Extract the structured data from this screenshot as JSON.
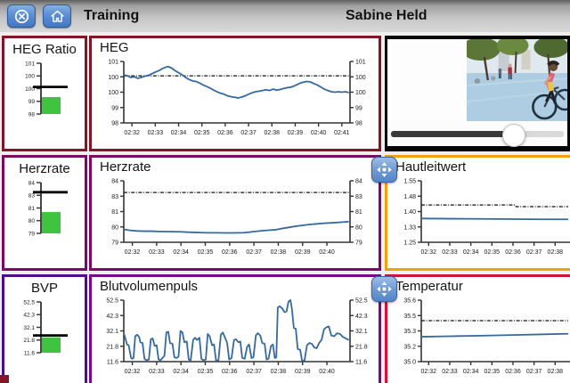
{
  "topbar": {
    "title": "Training",
    "user": "Sabine Held"
  },
  "colors": {
    "line": "#36699f",
    "threshold": "#111111",
    "bar": "#3ec43e",
    "axis": "#333333",
    "maroon": "#801626",
    "purple": "#7b0967",
    "violet": "#4f0d8e",
    "plum": "#75098a",
    "orange": "#f2a20a",
    "crimson": "#d41238",
    "video_frame": "#050505"
  },
  "panels": {
    "heg_gauge": {
      "title": "HEG Ratio",
      "border_color": "#801626"
    },
    "heg_chart": {
      "title": "HEG",
      "border_color": "#801626"
    },
    "video": {
      "border_color": "#050505"
    },
    "herzrate_gauge": {
      "title": "Herzrate",
      "border_color": "#7b0967"
    },
    "herzrate_chart": {
      "title": "Herzrate",
      "border_color": "#7b0967"
    },
    "hautleitwert_chart": {
      "title": "Hautleitwert",
      "border_color": "#f2a20a"
    },
    "bvp_gauge": {
      "title": "BVP",
      "border_color": "#4f0d8e"
    },
    "bvp_chart": {
      "title": "Blutvolumenpuls",
      "border_color": "#75098a"
    },
    "temperatur_chart": {
      "title": "Temperatur",
      "border_color": "#d41238"
    }
  },
  "video": {
    "progress": 0.7,
    "reveal": 0.44
  },
  "chart_data": [
    {
      "id": "heg_gauge",
      "type": "gauge",
      "title": "HEG Ratio",
      "ylim": [
        98,
        101
      ],
      "tick_labels": [
        "101",
        "100",
        "100",
        "99",
        "98"
      ],
      "value": 99.0,
      "threshold": 99.6
    },
    {
      "id": "herzrate_gauge",
      "type": "gauge",
      "title": "Herzrate",
      "ylim": [
        79,
        84
      ],
      "tick_labels": [
        "84",
        "83",
        "81",
        "80",
        "79"
      ],
      "value": 81.1,
      "threshold": 83.05
    },
    {
      "id": "bvp_gauge",
      "type": "gauge",
      "title": "BVP",
      "ylim": [
        11.6,
        52.5
      ],
      "tick_labels": [
        "52.5",
        "42.3",
        "32.1",
        "21.8",
        "11.6"
      ],
      "value": 24.0,
      "threshold": 25.5
    },
    {
      "id": "heg",
      "type": "line",
      "title": "HEG",
      "dual_axis": true,
      "ylim": [
        98,
        101
      ],
      "ytick_labels": [
        "101",
        "100",
        "100",
        "99",
        "98"
      ],
      "xlim": [
        31.65,
        41.35
      ],
      "xtick_labels": [
        "02:32",
        "02:33",
        "02:34",
        "02:35",
        "02:36",
        "02:37",
        "02:38",
        "02:39",
        "02:40",
        "02:41"
      ],
      "threshold": 100.3,
      "points": [
        [
          31.65,
          100.35
        ],
        [
          31.8,
          100.3
        ],
        [
          31.95,
          100.22
        ],
        [
          32.1,
          100.25
        ],
        [
          32.25,
          100.18
        ],
        [
          32.4,
          100.22
        ],
        [
          32.55,
          100.28
        ],
        [
          32.7,
          100.32
        ],
        [
          32.85,
          100.4
        ],
        [
          33.0,
          100.48
        ],
        [
          33.15,
          100.55
        ],
        [
          33.3,
          100.65
        ],
        [
          33.45,
          100.72
        ],
        [
          33.55,
          100.75
        ],
        [
          33.7,
          100.68
        ],
        [
          33.85,
          100.55
        ],
        [
          34.0,
          100.45
        ],
        [
          34.15,
          100.35
        ],
        [
          34.3,
          100.22
        ],
        [
          34.45,
          100.12
        ],
        [
          34.6,
          100.05
        ],
        [
          34.75,
          100.02
        ],
        [
          34.9,
          99.95
        ],
        [
          35.05,
          99.85
        ],
        [
          35.2,
          99.78
        ],
        [
          35.35,
          99.7
        ],
        [
          35.5,
          99.6
        ],
        [
          35.65,
          99.52
        ],
        [
          35.8,
          99.45
        ],
        [
          35.95,
          99.4
        ],
        [
          36.1,
          99.32
        ],
        [
          36.25,
          99.28
        ],
        [
          36.4,
          99.25
        ],
        [
          36.55,
          99.22
        ],
        [
          36.7,
          99.26
        ],
        [
          36.85,
          99.32
        ],
        [
          37.0,
          99.4
        ],
        [
          37.15,
          99.47
        ],
        [
          37.3,
          99.52
        ],
        [
          37.45,
          99.55
        ],
        [
          37.6,
          99.58
        ],
        [
          37.75,
          99.62
        ],
        [
          37.9,
          99.58
        ],
        [
          38.05,
          99.65
        ],
        [
          38.2,
          99.6
        ],
        [
          38.35,
          99.63
        ],
        [
          38.5,
          99.68
        ],
        [
          38.65,
          99.72
        ],
        [
          38.8,
          99.74
        ],
        [
          38.95,
          99.8
        ],
        [
          39.1,
          99.88
        ],
        [
          39.25,
          99.96
        ],
        [
          39.4,
          100.0
        ],
        [
          39.5,
          100.02
        ],
        [
          39.65,
          100.0
        ],
        [
          39.8,
          99.92
        ],
        [
          39.95,
          99.85
        ],
        [
          40.1,
          99.75
        ],
        [
          40.25,
          99.65
        ],
        [
          40.4,
          99.58
        ],
        [
          40.55,
          99.52
        ],
        [
          40.7,
          99.5
        ],
        [
          40.85,
          99.52
        ],
        [
          41.0,
          99.5
        ],
        [
          41.15,
          99.52
        ],
        [
          41.3,
          99.48
        ]
      ]
    },
    {
      "id": "herzrate",
      "type": "line",
      "title": "Herzrate",
      "dual_axis": true,
      "ylim": [
        79,
        84
      ],
      "ytick_labels": [
        "84",
        "83",
        "81",
        "80",
        "79"
      ],
      "xlim": [
        31.65,
        40.95
      ],
      "xtick_labels": [
        "02:32",
        "02:33",
        "02:34",
        "02:35",
        "02:36",
        "02:37",
        "02:38",
        "02:39",
        "02:40"
      ],
      "threshold": 83.05,
      "points": [
        [
          31.65,
          80.05
        ],
        [
          31.9,
          79.97
        ],
        [
          32.2,
          79.92
        ],
        [
          32.5,
          79.9
        ],
        [
          32.8,
          79.9
        ],
        [
          33.1,
          79.88
        ],
        [
          33.4,
          79.87
        ],
        [
          33.7,
          79.86
        ],
        [
          34.0,
          79.85
        ],
        [
          34.3,
          79.82
        ],
        [
          34.6,
          79.8
        ],
        [
          34.9,
          79.78
        ],
        [
          35.2,
          79.77
        ],
        [
          35.5,
          79.77
        ],
        [
          35.8,
          79.76
        ],
        [
          36.1,
          79.76
        ],
        [
          36.4,
          79.77
        ],
        [
          36.6,
          79.78
        ],
        [
          36.8,
          79.82
        ],
        [
          37.0,
          79.87
        ],
        [
          37.3,
          79.93
        ],
        [
          37.6,
          79.98
        ],
        [
          37.9,
          80.02
        ],
        [
          38.1,
          80.1
        ],
        [
          38.4,
          80.2
        ],
        [
          38.7,
          80.3
        ],
        [
          39.0,
          80.38
        ],
        [
          39.3,
          80.45
        ],
        [
          39.6,
          80.5
        ],
        [
          39.9,
          80.55
        ],
        [
          40.2,
          80.58
        ],
        [
          40.5,
          80.62
        ],
        [
          40.9,
          80.68
        ]
      ]
    },
    {
      "id": "blutvolumenpuls",
      "type": "line",
      "title": "Blutvolumenpuls",
      "dual_axis": true,
      "ylim": [
        11.6,
        52.5
      ],
      "ytick_labels": [
        "52.5",
        "42.3",
        "32.1",
        "21.8",
        "11.6"
      ],
      "xlim": [
        31.65,
        40.95
      ],
      "xtick_labels": [
        "02:32",
        "02:33",
        "02:34",
        "02:35",
        "02:36",
        "02:37",
        "02:38",
        "02:39",
        "02:40"
      ],
      "threshold": null,
      "points": [
        [
          31.65,
          30.5
        ],
        [
          31.7,
          28
        ],
        [
          31.78,
          23
        ],
        [
          31.85,
          22.5
        ],
        [
          31.95,
          14
        ],
        [
          32.0,
          13.5
        ],
        [
          32.05,
          14
        ],
        [
          32.12,
          28.5
        ],
        [
          32.2,
          29.5
        ],
        [
          32.28,
          28
        ],
        [
          32.33,
          24.5
        ],
        [
          32.42,
          24
        ],
        [
          32.5,
          13.5
        ],
        [
          32.58,
          12.5
        ],
        [
          32.68,
          13
        ],
        [
          32.76,
          26.5
        ],
        [
          32.84,
          27
        ],
        [
          32.92,
          22
        ],
        [
          33.0,
          22.5
        ],
        [
          33.08,
          13
        ],
        [
          33.16,
          12.5
        ],
        [
          33.24,
          14
        ],
        [
          33.32,
          15.5
        ],
        [
          33.4,
          31
        ],
        [
          33.48,
          31.5
        ],
        [
          33.55,
          24
        ],
        [
          33.65,
          23.5
        ],
        [
          33.73,
          14.5
        ],
        [
          33.82,
          14
        ],
        [
          33.9,
          15
        ],
        [
          33.98,
          32
        ],
        [
          34.06,
          31
        ],
        [
          34.14,
          24.5
        ],
        [
          34.24,
          25
        ],
        [
          34.32,
          13
        ],
        [
          34.4,
          12.5
        ],
        [
          34.5,
          26
        ],
        [
          34.58,
          27.5
        ],
        [
          34.66,
          26
        ],
        [
          34.76,
          27.5
        ],
        [
          34.84,
          13.5
        ],
        [
          34.92,
          12.5
        ],
        [
          35.02,
          13
        ],
        [
          35.1,
          30
        ],
        [
          35.18,
          28.5
        ],
        [
          35.28,
          22.5
        ],
        [
          35.36,
          23
        ],
        [
          35.44,
          12.5
        ],
        [
          35.54,
          12.5
        ],
        [
          35.64,
          29.5
        ],
        [
          35.72,
          31
        ],
        [
          35.8,
          28
        ],
        [
          35.9,
          24
        ],
        [
          35.98,
          13
        ],
        [
          36.08,
          14
        ],
        [
          36.18,
          26
        ],
        [
          36.26,
          26.5
        ],
        [
          36.36,
          24.5
        ],
        [
          36.44,
          25
        ],
        [
          36.52,
          14
        ],
        [
          36.62,
          13.5
        ],
        [
          36.72,
          21.5
        ],
        [
          36.8,
          23
        ],
        [
          36.9,
          14
        ],
        [
          36.98,
          14.5
        ],
        [
          37.08,
          29
        ],
        [
          37.16,
          30.5
        ],
        [
          37.26,
          29
        ],
        [
          37.34,
          24
        ],
        [
          37.44,
          23.5
        ],
        [
          37.52,
          13
        ],
        [
          37.6,
          13.5
        ],
        [
          37.7,
          22
        ],
        [
          37.78,
          23
        ],
        [
          37.86,
          14
        ],
        [
          37.92,
          14.5
        ],
        [
          37.98,
          47.5
        ],
        [
          38.06,
          48.5
        ],
        [
          38.16,
          47
        ],
        [
          38.26,
          44.5
        ],
        [
          38.34,
          45
        ],
        [
          38.42,
          51.5
        ],
        [
          38.5,
          52.5
        ],
        [
          38.56,
          47
        ],
        [
          38.64,
          34
        ],
        [
          38.72,
          33.5
        ],
        [
          38.8,
          20
        ],
        [
          38.9,
          19.5
        ],
        [
          38.98,
          12
        ],
        [
          39.08,
          12.5
        ],
        [
          39.18,
          22.5
        ],
        [
          39.28,
          24
        ],
        [
          39.38,
          23.5
        ],
        [
          39.48,
          21
        ],
        [
          39.58,
          20.5
        ],
        [
          39.68,
          24
        ],
        [
          39.78,
          26
        ],
        [
          39.88,
          33
        ],
        [
          39.98,
          34.5
        ],
        [
          40.08,
          35
        ],
        [
          40.18,
          29
        ],
        [
          40.3,
          28.5
        ],
        [
          40.42,
          30.5
        ],
        [
          40.54,
          30
        ],
        [
          40.66,
          28
        ],
        [
          40.78,
          27
        ],
        [
          40.9,
          26
        ]
      ]
    },
    {
      "id": "hautleitwert",
      "type": "line",
      "title": "Hautleitwert",
      "dual_axis": false,
      "ylim": [
        1.25,
        1.55
      ],
      "ytick_labels": [
        "1.55",
        "1.48",
        "1.40",
        "1.33",
        "1.25"
      ],
      "xlim": [
        31.65,
        38.62
      ],
      "xtick_labels": [
        "02:32",
        "02:33",
        "02:34",
        "02:35",
        "02:36",
        "02:37",
        "02:38"
      ],
      "threshold_points": [
        [
          31.65,
          1.432
        ],
        [
          36.1,
          1.432
        ],
        [
          36.15,
          1.424
        ],
        [
          38.62,
          1.424
        ]
      ],
      "points": [
        [
          31.65,
          1.366
        ],
        [
          33.0,
          1.365
        ],
        [
          34.5,
          1.364
        ],
        [
          36.0,
          1.363
        ],
        [
          37.5,
          1.362
        ],
        [
          38.62,
          1.362
        ]
      ]
    },
    {
      "id": "temperatur",
      "type": "line",
      "title": "Temperatur",
      "dual_axis": false,
      "ylim": [
        35.0,
        35.6
      ],
      "ytick_labels": [
        "35.6",
        "35.5",
        "35.3",
        "35.2",
        "35.0"
      ],
      "xlim": [
        31.65,
        38.62
      ],
      "xtick_labels": [
        "02:32",
        "02:33",
        "02:34",
        "02:35",
        "02:36",
        "02:37",
        "02:38"
      ],
      "threshold": 35.4,
      "points": [
        [
          31.65,
          35.243
        ],
        [
          33.0,
          35.248
        ],
        [
          34.5,
          35.253
        ],
        [
          36.0,
          35.26
        ],
        [
          37.5,
          35.267
        ],
        [
          38.62,
          35.272
        ]
      ]
    }
  ]
}
